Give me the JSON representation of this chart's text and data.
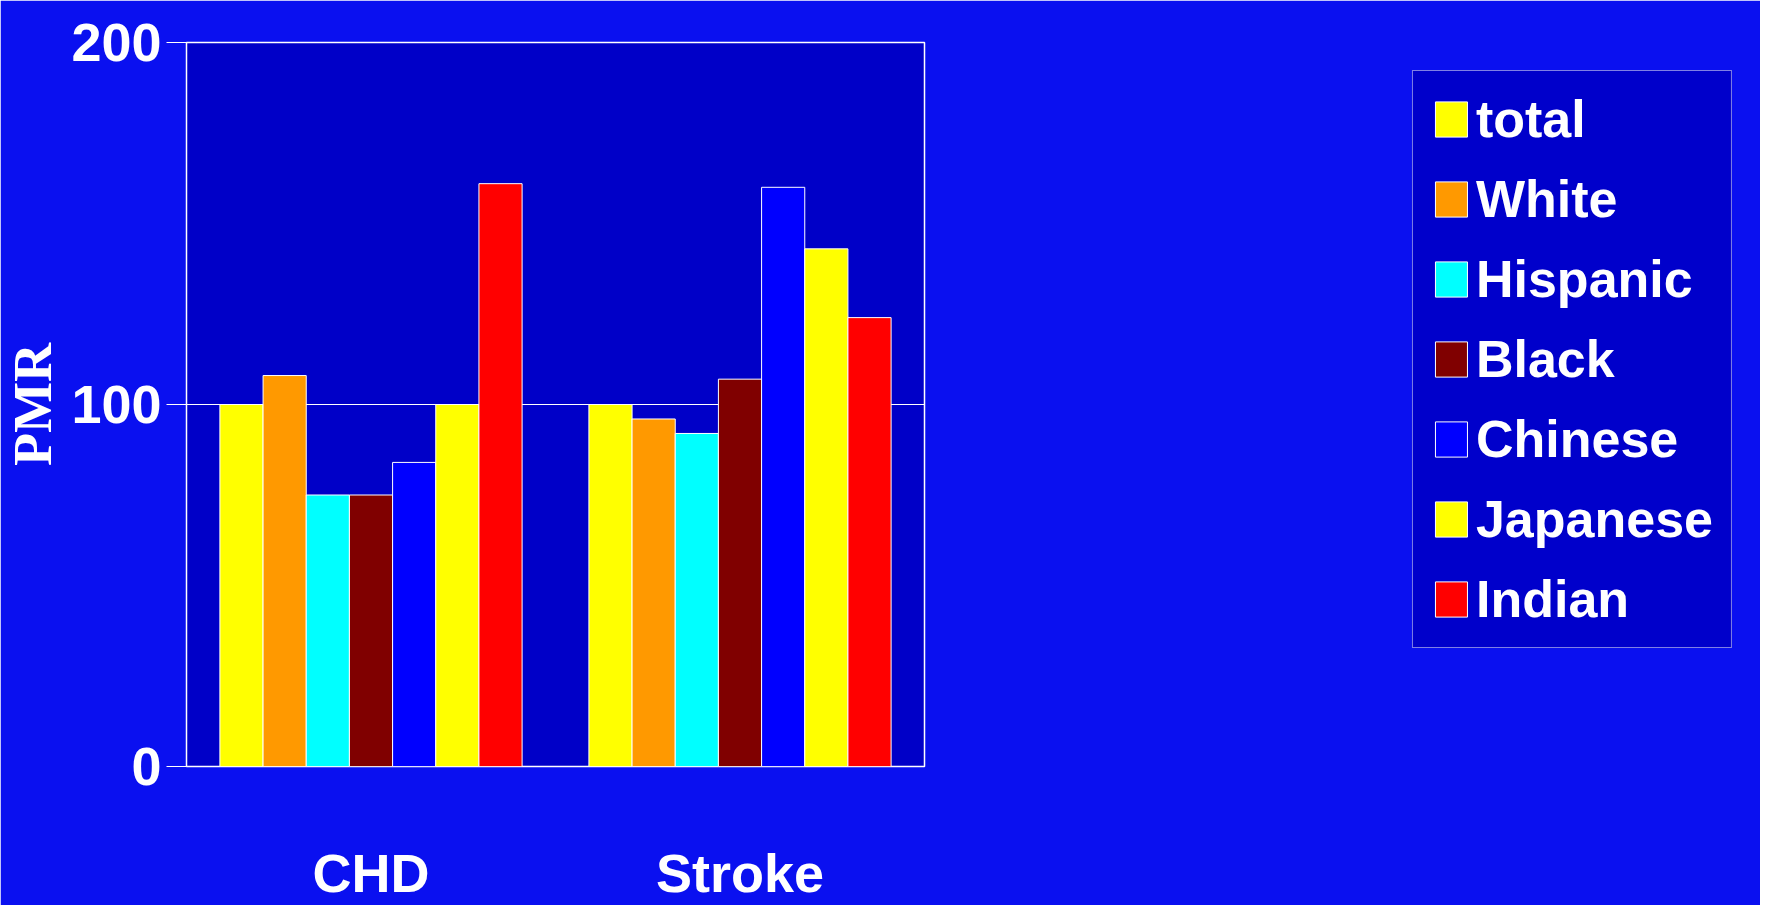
{
  "chart_data": {
    "type": "bar",
    "ylabel": "PMR",
    "categories": [
      "CHD",
      "Stroke"
    ],
    "series": [
      {
        "name": "total",
        "color": "#ffff00",
        "values": [
          100,
          100
        ]
      },
      {
        "name": "White",
        "color": "#ff9900",
        "values": [
          108,
          96
        ]
      },
      {
        "name": "Hispanic",
        "color": "#00ffff",
        "values": [
          75,
          92
        ]
      },
      {
        "name": "Black",
        "color": "#800000",
        "values": [
          75,
          107
        ]
      },
      {
        "name": "Chinese",
        "color": "#0000ff",
        "values": [
          84,
          160
        ]
      },
      {
        "name": "Japanese",
        "color": "#ffff00",
        "values": [
          100,
          143
        ]
      },
      {
        "name": "Indian",
        "color": "#ff0000",
        "values": [
          161,
          124
        ]
      }
    ],
    "ylim": [
      0,
      200
    ],
    "yticks": [
      0,
      100,
      200
    ],
    "grid": "y",
    "legend": "right"
  }
}
